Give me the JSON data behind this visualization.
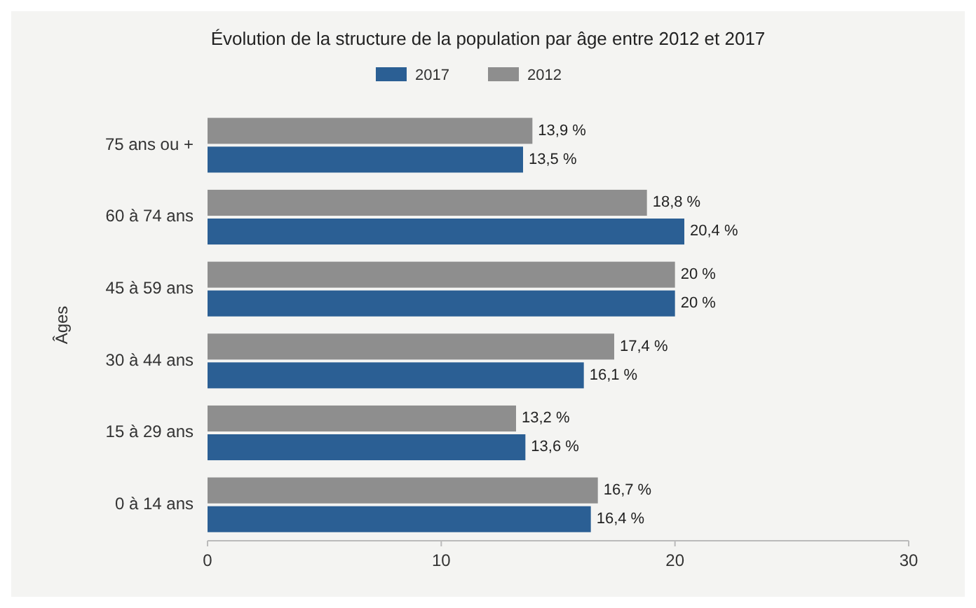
{
  "chart_data": {
    "type": "bar",
    "orientation": "horizontal",
    "title": "Évolution de la structure de la population par âge entre 2012 et 2017",
    "ylabel": "Âges",
    "categories": [
      "75 ans ou +",
      "60 à 74 ans",
      "45 à 59 ans",
      "30 à 44 ans",
      "15 à 29 ans",
      "0 à 14 ans"
    ],
    "series": [
      {
        "name": "2017",
        "color": "#2b5f94",
        "values": [
          13.5,
          20.4,
          20,
          16.1,
          13.6,
          16.4
        ],
        "value_labels": [
          "13,5 %",
          "20,4 %",
          "20 %",
          "16,1 %",
          "13,6 %",
          "16,4 %"
        ]
      },
      {
        "name": "2012",
        "color": "#8e8e8e",
        "values": [
          13.9,
          18.8,
          20,
          17.4,
          13.2,
          16.7
        ],
        "value_labels": [
          "13,9 %",
          "18,8 %",
          "20 %",
          "17,4 %",
          "13,2 %",
          "16,7 %"
        ]
      }
    ],
    "xlim": [
      0,
      30
    ],
    "xticks": [
      0,
      10,
      20,
      30
    ],
    "legend": "top"
  }
}
